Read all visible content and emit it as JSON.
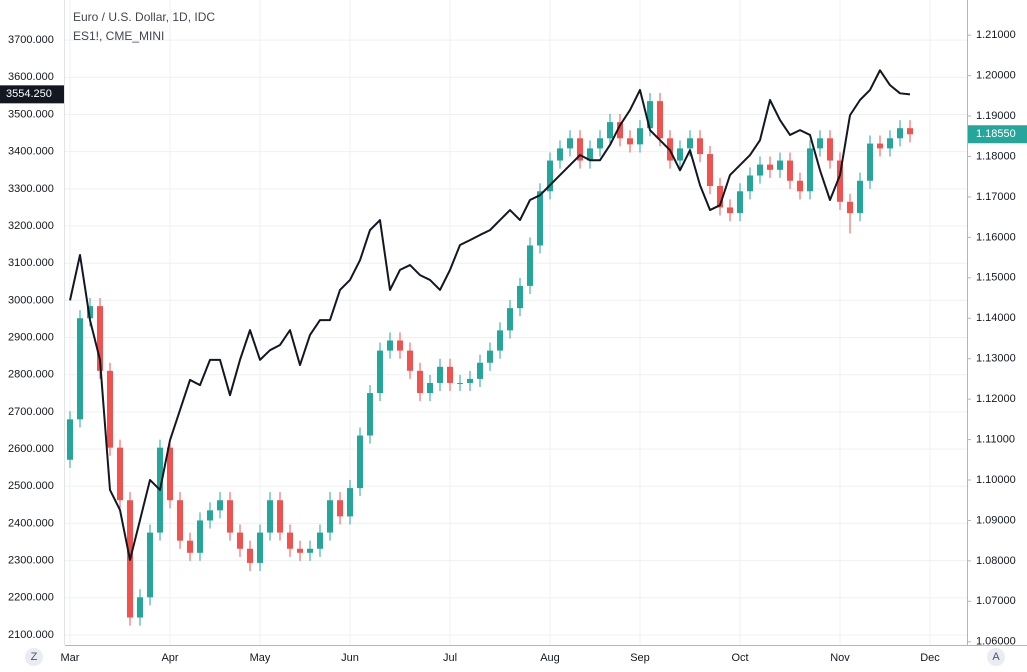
{
  "chart_data": {
    "type": "candlestick",
    "title": "Euro / U.S. Dollar, 1D, IDC",
    "subtitle": "ES1!, CME_MINI",
    "grid": true,
    "categories": [
      "Mar",
      null,
      null,
      null,
      null,
      null,
      null,
      null,
      null,
      null,
      "Apr",
      null,
      null,
      null,
      null,
      null,
      null,
      null,
      null,
      "May",
      null,
      null,
      null,
      null,
      null,
      null,
      null,
      null,
      "Jun",
      null,
      null,
      null,
      null,
      null,
      null,
      null,
      null,
      null,
      "Jul",
      null,
      null,
      null,
      null,
      null,
      null,
      null,
      null,
      null,
      "Aug",
      null,
      null,
      null,
      null,
      null,
      null,
      null,
      null,
      "Sep",
      null,
      null,
      null,
      null,
      null,
      null,
      null,
      null,
      null,
      "Oct",
      null,
      null,
      null,
      null,
      null,
      null,
      null,
      null,
      null,
      "Nov",
      null,
      null,
      null,
      null,
      null,
      null,
      null,
      null,
      "Dec",
      null,
      null,
      null
    ],
    "ylim": [
      2073,
      3808
    ],
    "yticks": [
      {
        "value": 2100,
        "label": "2100.000"
      },
      {
        "value": 2200,
        "label": "2200.000"
      },
      {
        "value": 2300,
        "label": "2300.000"
      },
      {
        "value": 2400,
        "label": "2400.000"
      },
      {
        "value": 2500,
        "label": "2500.000"
      },
      {
        "value": 2600,
        "label": "2600.000"
      },
      {
        "value": 2700,
        "label": "2700.000"
      },
      {
        "value": 2800,
        "label": "2800.000"
      },
      {
        "value": 2900,
        "label": "2900.000"
      },
      {
        "value": 3000,
        "label": "3000.000"
      },
      {
        "value": 3100,
        "label": "3100.000"
      },
      {
        "value": 3200,
        "label": "3200.000"
      },
      {
        "value": 3300,
        "label": "3300.000"
      },
      {
        "value": 3400,
        "label": "3400.000"
      },
      {
        "value": 3500,
        "label": "3500.000"
      },
      {
        "value": 3600,
        "label": "3600.000"
      },
      {
        "value": 3700,
        "label": "3700.000"
      }
    ],
    "y2lim": [
      1.0592,
      1.2187
    ],
    "y2ticks": [
      {
        "value": 1.06,
        "label": "1.06000"
      },
      {
        "value": 1.07,
        "label": "1.07000"
      },
      {
        "value": 1.08,
        "label": "1.08000"
      },
      {
        "value": 1.09,
        "label": "1.09000"
      },
      {
        "value": 1.1,
        "label": "1.10000"
      },
      {
        "value": 1.11,
        "label": "1.11000"
      },
      {
        "value": 1.12,
        "label": "1.12000"
      },
      {
        "value": 1.13,
        "label": "1.13000"
      },
      {
        "value": 1.14,
        "label": "1.14000"
      },
      {
        "value": 1.15,
        "label": "1.15000"
      },
      {
        "value": 1.16,
        "label": "1.16000"
      },
      {
        "value": 1.17,
        "label": "1.17000"
      },
      {
        "value": 1.18,
        "label": "1.18000"
      },
      {
        "value": 1.19,
        "label": "1.19000"
      },
      {
        "value": 1.2,
        "label": "1.20000"
      },
      {
        "value": 1.21,
        "label": "1.21000"
      }
    ],
    "series": [
      {
        "name": "Euro / U.S. Dollar, 1D, IDC",
        "type": "candlestick",
        "axis": "y2",
        "up_color": "#26a69a",
        "down_color": "#ef5350",
        "open": [
          1.105,
          1.115,
          1.14,
          1.143,
          1.127,
          1.108,
          1.095,
          1.066,
          1.071,
          1.087,
          1.108,
          1.095,
          1.085,
          1.082,
          1.09,
          1.0925,
          1.095,
          1.087,
          1.083,
          1.0795,
          1.087,
          1.095,
          1.087,
          1.083,
          1.082,
          1.083,
          1.087,
          1.095,
          1.091,
          1.098,
          1.111,
          1.1215,
          1.132,
          1.1345,
          1.132,
          1.127,
          1.1215,
          1.124,
          1.128,
          1.124,
          1.124,
          1.125,
          1.129,
          1.132,
          1.137,
          1.1425,
          1.148,
          1.158,
          1.1714,
          1.179,
          1.182,
          1.1845,
          1.179,
          1.182,
          1.1845,
          1.1885,
          1.1845,
          1.183,
          1.187,
          1.1937,
          1.1845,
          1.179,
          1.182,
          1.1845,
          1.1806,
          1.1727,
          1.1674,
          1.166,
          1.1714,
          1.1753,
          1.178,
          1.1767,
          1.179,
          1.174,
          1.1714,
          1.182,
          1.1845,
          1.179,
          1.1688,
          1.166,
          1.174,
          1.1832,
          1.182,
          1.1845,
          1.187,
          null,
          null,
          null,
          null,
          null
        ],
        "high": [
          1.117,
          1.142,
          1.145,
          1.145,
          1.129,
          1.11,
          1.097,
          1.073,
          1.089,
          1.11,
          1.11,
          1.097,
          1.087,
          1.092,
          1.0945,
          1.097,
          1.097,
          1.089,
          1.085,
          1.089,
          1.097,
          1.097,
          1.089,
          1.085,
          1.085,
          1.089,
          1.097,
          1.097,
          1.1,
          1.113,
          1.1235,
          1.134,
          1.1365,
          1.1365,
          1.134,
          1.129,
          1.126,
          1.13,
          1.13,
          1.126,
          1.127,
          1.131,
          1.134,
          1.139,
          1.1445,
          1.15,
          1.16,
          1.1734,
          1.181,
          1.184,
          1.1865,
          1.1865,
          1.184,
          1.1865,
          1.1905,
          1.1905,
          1.1865,
          1.189,
          1.1957,
          1.1957,
          1.1865,
          1.184,
          1.1865,
          1.1865,
          1.1826,
          1.1747,
          1.1694,
          1.1734,
          1.1773,
          1.18,
          1.18,
          1.181,
          1.181,
          1.176,
          1.184,
          1.1865,
          1.1865,
          1.181,
          1.1708,
          1.176,
          1.1852,
          1.1852,
          1.1865,
          1.189,
          1.189,
          null,
          null,
          null,
          null,
          null
        ],
        "low": [
          1.103,
          1.113,
          1.138,
          1.125,
          1.106,
          1.093,
          1.064,
          1.064,
          1.069,
          1.085,
          1.093,
          1.083,
          1.08,
          1.08,
          1.088,
          1.0905,
          1.085,
          1.081,
          1.0775,
          1.0775,
          1.085,
          1.085,
          1.081,
          1.08,
          1.08,
          1.081,
          1.085,
          1.089,
          1.089,
          1.096,
          1.109,
          1.1195,
          1.13,
          1.13,
          1.125,
          1.1195,
          1.1195,
          1.122,
          1.122,
          1.122,
          1.122,
          1.123,
          1.127,
          1.13,
          1.135,
          1.1405,
          1.146,
          1.156,
          1.1694,
          1.177,
          1.18,
          1.177,
          1.177,
          1.18,
          1.1825,
          1.1825,
          1.181,
          1.181,
          1.185,
          1.1825,
          1.177,
          1.177,
          1.18,
          1.1786,
          1.1707,
          1.1654,
          1.164,
          1.164,
          1.1694,
          1.1733,
          1.1747,
          1.1747,
          1.172,
          1.1694,
          1.1694,
          1.18,
          1.177,
          1.1668,
          1.161,
          1.164,
          1.172,
          1.18,
          1.18,
          1.1825,
          1.1835,
          null,
          null,
          null,
          null,
          null
        ],
        "close": [
          1.115,
          1.14,
          1.143,
          1.127,
          1.108,
          1.095,
          1.066,
          1.071,
          1.087,
          1.108,
          1.095,
          1.085,
          1.082,
          1.09,
          1.0925,
          1.095,
          1.087,
          1.083,
          1.0795,
          1.087,
          1.095,
          1.087,
          1.083,
          1.082,
          1.083,
          1.087,
          1.095,
          1.091,
          1.098,
          1.111,
          1.1215,
          1.132,
          1.1345,
          1.132,
          1.127,
          1.1215,
          1.124,
          1.128,
          1.124,
          1.124,
          1.125,
          1.129,
          1.132,
          1.137,
          1.1425,
          1.148,
          1.158,
          1.1714,
          1.179,
          1.182,
          1.1845,
          1.179,
          1.182,
          1.1845,
          1.1885,
          1.1845,
          1.183,
          1.187,
          1.1937,
          1.1845,
          1.179,
          1.182,
          1.1845,
          1.1806,
          1.1727,
          1.1674,
          1.166,
          1.1714,
          1.1753,
          1.178,
          1.1767,
          1.179,
          1.174,
          1.1714,
          1.182,
          1.1845,
          1.179,
          1.1688,
          1.166,
          1.174,
          1.1832,
          1.182,
          1.1845,
          1.187,
          1.1855,
          null,
          null,
          null,
          null,
          null
        ],
        "value_labels": [
          null,
          null,
          null,
          null,
          null,
          null,
          null,
          null,
          null,
          null,
          null,
          null,
          null,
          null,
          null,
          null,
          null,
          null,
          null,
          null,
          null,
          null,
          null,
          null,
          null,
          null,
          null,
          null,
          null,
          null,
          null,
          null,
          null,
          null,
          null,
          null,
          null,
          null,
          null,
          null,
          null,
          null,
          null,
          null,
          null,
          null,
          null,
          null,
          null,
          null,
          null,
          null,
          null,
          null,
          null,
          null,
          null,
          null,
          null,
          null,
          null,
          null,
          null,
          null,
          null,
          null,
          null,
          null,
          null,
          null,
          null,
          null,
          null,
          null,
          null,
          null,
          null,
          null,
          null,
          null,
          null,
          null,
          null,
          null,
          "1.18550",
          null,
          null,
          null,
          null,
          null
        ]
      },
      {
        "name": "ES1!, CME_MINI",
        "type": "line",
        "axis": "y",
        "color": "#131722",
        "values": [
          3000,
          3122,
          2947,
          2840,
          2490,
          2436,
          2302,
          2409,
          2517,
          2490,
          2624,
          2705,
          2786,
          2772,
          2840,
          2840,
          2745,
          2840,
          2920,
          2840,
          2866,
          2880,
          2920,
          2826,
          2907,
          2947,
          2947,
          3028,
          3055,
          3108,
          3189,
          3216,
          3028,
          3082,
          3095,
          3068,
          3055,
          3028,
          3082,
          3149,
          3162,
          3176,
          3189,
          3216,
          3243,
          3216,
          3270,
          3283,
          3310,
          3337,
          3364,
          3391,
          3377,
          3377,
          3418,
          3471,
          3512,
          3566,
          3458,
          3431,
          3404,
          3350,
          3404,
          3310,
          3243,
          3256,
          3337,
          3364,
          3391,
          3431,
          3539,
          3485,
          3445,
          3458,
          3445,
          3350,
          3270,
          3337,
          3498,
          3539,
          3566,
          3619,
          3579,
          3557,
          3554.25,
          null,
          null,
          null,
          null,
          null
        ],
        "value_labels": [
          null,
          null,
          null,
          null,
          null,
          null,
          null,
          null,
          null,
          null,
          null,
          null,
          null,
          null,
          null,
          null,
          null,
          null,
          null,
          null,
          null,
          null,
          null,
          null,
          null,
          null,
          null,
          null,
          null,
          null,
          null,
          null,
          null,
          null,
          null,
          null,
          null,
          null,
          null,
          null,
          null,
          null,
          null,
          null,
          null,
          null,
          null,
          null,
          null,
          null,
          null,
          null,
          null,
          null,
          null,
          null,
          null,
          null,
          null,
          null,
          null,
          null,
          null,
          null,
          null,
          null,
          null,
          null,
          null,
          null,
          null,
          null,
          null,
          null,
          null,
          null,
          null,
          null,
          null,
          null,
          null,
          null,
          null,
          null,
          "3554.250",
          null,
          null,
          null,
          null,
          null
        ]
      }
    ],
    "buttons": [
      "Z",
      "A"
    ]
  }
}
